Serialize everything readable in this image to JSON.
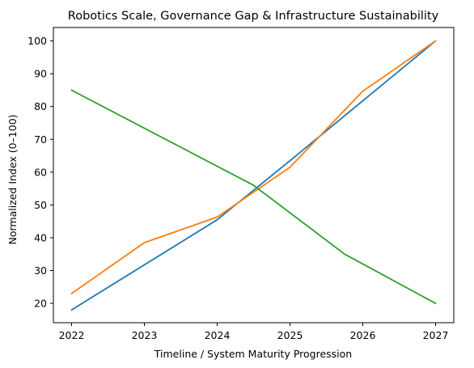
{
  "chart_data": {
    "type": "line",
    "title": "Robotics Scale, Governance Gap & Infrastructure Sustainability",
    "xlabel": "Timeline / System Maturity Progression",
    "ylabel": "Normalized Index (0–100)",
    "xlim": [
      2021.75,
      2027.25
    ],
    "ylim": [
      14.1,
      104.1
    ],
    "xticks": [
      2022,
      2023,
      2024,
      2025,
      2026,
      2027
    ],
    "yticks": [
      20,
      30,
      40,
      50,
      60,
      70,
      80,
      90,
      100
    ],
    "grid": false,
    "series": [
      {
        "color": "#1f77b4",
        "points": [
          [
            2022,
            18
          ],
          [
            2024,
            45.5
          ],
          [
            2025,
            63.5
          ],
          [
            2027,
            100
          ]
        ]
      },
      {
        "color": "#ff7f0e",
        "points": [
          [
            2022,
            23
          ],
          [
            2023,
            38.5
          ],
          [
            2024,
            46.3
          ],
          [
            2025,
            61.5
          ],
          [
            2026,
            84.7
          ],
          [
            2027,
            100
          ]
        ]
      },
      {
        "color": "#2ca02c",
        "points": [
          [
            2022,
            85
          ],
          [
            2024.5,
            56
          ],
          [
            2025.75,
            35
          ],
          [
            2027,
            20
          ]
        ]
      }
    ]
  }
}
